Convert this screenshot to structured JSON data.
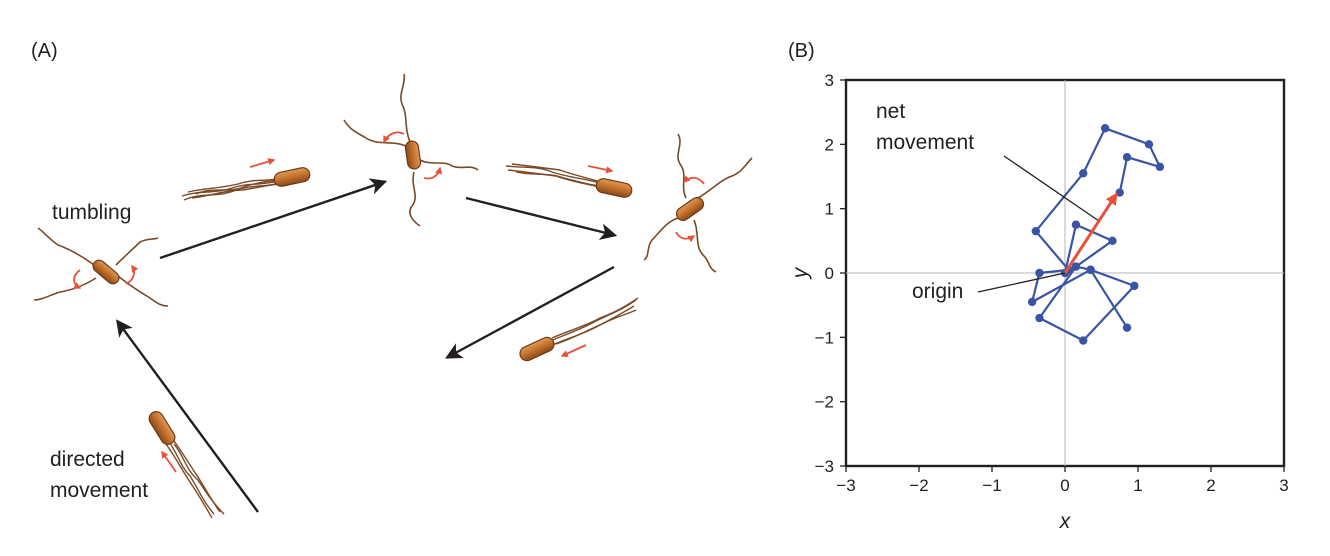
{
  "panel_a": {
    "label": "(A)",
    "tumbling_label": "tumbling",
    "directed_label_1": "directed",
    "directed_label_2": "movement"
  },
  "panel_b": {
    "label": "(B)",
    "net_label_1": "net",
    "net_label_2": "movement",
    "origin_label": "origin"
  },
  "colors": {
    "bacterium_body": "#c2702c",
    "bacterium_outline": "#6b3a16",
    "flagella": "#7a4a26",
    "red_arrow": "#e8503a",
    "path": "#3a54a4",
    "black_arrow": "#231f20"
  },
  "chart_data": {
    "type": "line",
    "xlabel": "x",
    "ylabel": "y",
    "xlim": [
      -3,
      3
    ],
    "ylim": [
      -3,
      3
    ],
    "xticks": [
      "−3",
      "−2",
      "−1",
      "0",
      "1",
      "2",
      "3"
    ],
    "yticks": [
      "3",
      "2",
      "1",
      "0",
      "−1",
      "−2",
      "−3"
    ],
    "grid": false,
    "series": [
      {
        "x": [
          0.0,
          0.15,
          0.65,
          0.15,
          0.35,
          0.95,
          0.25,
          -0.35,
          0.15,
          0.35,
          0.85,
          0.35,
          -0.45,
          -0.35,
          0.05,
          -0.4,
          0.25,
          0.55,
          1.15,
          1.3,
          0.85,
          0.75
        ],
        "y": [
          0.0,
          0.75,
          0.5,
          0.1,
          0.05,
          -0.2,
          -1.05,
          -0.7,
          0.1,
          0.05,
          -0.85,
          0.05,
          -0.45,
          0.0,
          0.05,
          0.65,
          1.55,
          2.25,
          2.0,
          1.65,
          1.8,
          1.25
        ]
      }
    ],
    "net_vector": {
      "from": [
        0.0,
        0.0
      ],
      "to": [
        0.7,
        1.22
      ]
    }
  }
}
